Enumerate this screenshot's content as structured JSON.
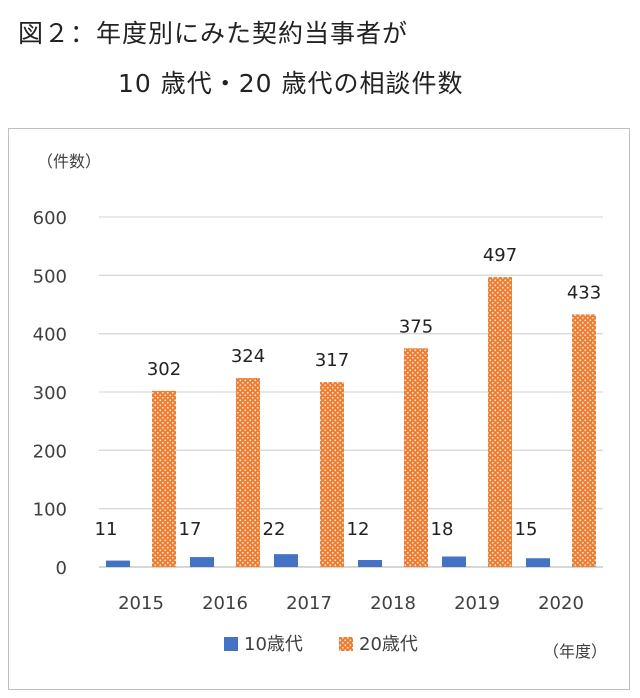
{
  "title": {
    "line1": "図２：年度別にみた契約当事者が",
    "line2": "10 歳代・20 歳代の相談件数"
  },
  "chart_data": {
    "type": "bar",
    "ylabel": "（件数）",
    "xlabel": "（年度）",
    "categories": [
      "2015",
      "2016",
      "2017",
      "2018",
      "2019",
      "2020"
    ],
    "series": [
      {
        "name": "10歳代",
        "values": [
          11,
          17,
          22,
          12,
          18,
          15
        ],
        "color": "#4472c4"
      },
      {
        "name": "20歳代",
        "values": [
          302,
          324,
          317,
          375,
          497,
          433
        ],
        "color": "#ed7d31"
      }
    ],
    "ylim": [
      0,
      600
    ],
    "yticks": [
      0,
      100,
      200,
      300,
      400,
      500,
      600
    ],
    "grid": true,
    "legend": "bottom"
  }
}
